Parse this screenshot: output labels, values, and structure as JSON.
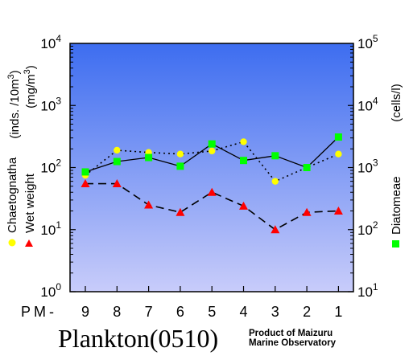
{
  "chart_data": {
    "type": "line",
    "title": "Plankton(0510)",
    "credit_line1": "Product of Maizuru",
    "credit_line2": "Marine Observatory",
    "x_prefix": "PM-",
    "categories": [
      "9",
      "8",
      "7",
      "6",
      "5",
      "4",
      "3",
      "2",
      "1"
    ],
    "left_axis": {
      "label_line1": "(inds. /10m",
      "label_line1_sup": "3",
      "label_line1_end": ")",
      "label_line2": "(mg/m",
      "label_line2_sup": "3",
      "label_line2_end": ")",
      "scale": "log",
      "ylim": [
        1,
        10000
      ],
      "ticks": [
        {
          "base": "10",
          "exp": "0"
        },
        {
          "base": "10",
          "exp": "1"
        },
        {
          "base": "10",
          "exp": "2"
        },
        {
          "base": "10",
          "exp": "3"
        },
        {
          "base": "10",
          "exp": "4"
        }
      ]
    },
    "right_axis": {
      "label": "(cells/l)",
      "scale": "log",
      "ylim": [
        10,
        100000
      ],
      "ticks": [
        {
          "base": "10",
          "exp": "1"
        },
        {
          "base": "10",
          "exp": "2"
        },
        {
          "base": "10",
          "exp": "3"
        },
        {
          "base": "10",
          "exp": "4"
        },
        {
          "base": "10",
          "exp": "5"
        }
      ]
    },
    "series": [
      {
        "name": "Chaetognatha",
        "axis": "left",
        "marker": "circle",
        "line": "dotted",
        "color": "#ffff00",
        "values": [
          75,
          190,
          175,
          165,
          185,
          260,
          60,
          100,
          165
        ]
      },
      {
        "name": "Wet weight",
        "axis": "left",
        "marker": "triangle",
        "line": "dashed",
        "color": "#ff0000",
        "values": [
          55,
          55,
          25,
          19,
          40,
          24,
          10,
          19,
          20
        ]
      },
      {
        "name": "Diatomeae",
        "axis": "right",
        "marker": "square",
        "line": "solid",
        "color": "#00ff00",
        "values": [
          850,
          1250,
          1450,
          1050,
          2400,
          1300,
          1550,
          1000,
          3100
        ]
      }
    ],
    "background_gradient": [
      "#3d6df0",
      "#c8ccfa"
    ]
  }
}
